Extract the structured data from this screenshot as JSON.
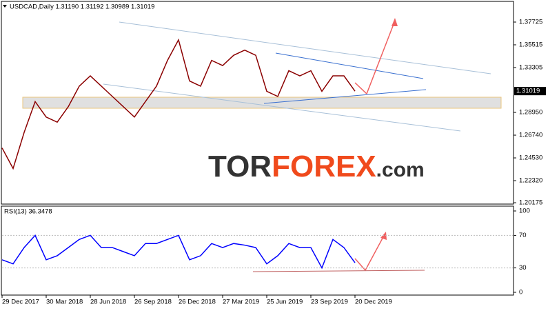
{
  "chart_data": [
    {
      "type": "line",
      "title": "USDCAD,Daily  1.31190 1.31192 1.30989 1.31019",
      "color": "#8b0000",
      "values": [
        1.255,
        1.235,
        1.27,
        1.3,
        1.285,
        1.28,
        1.295,
        1.315,
        1.325,
        1.315,
        1.305,
        1.295,
        1.285,
        1.3,
        1.315,
        1.34,
        1.36,
        1.32,
        1.315,
        1.34,
        1.335,
        1.345,
        1.35,
        1.345,
        1.31,
        1.305,
        1.33,
        1.325,
        1.33,
        1.31,
        1.325,
        1.325,
        1.31019
      ],
      "ylim": [
        1.20045,
        1.39734
      ],
      "yticks": [
        1.20175,
        {
          "value": 1.2232,
          "label": "1.22320"
        },
        {
          "value": 1.2453,
          "label": "1.24530"
        },
        {
          "value": 1.2674,
          "label": "1.26740"
        },
        {
          "value": 1.2895,
          "label": "1.28950"
        },
        1.33305,
        1.35515,
        1.37725
      ],
      "watermark": {
        "prefix": "TOR",
        "brand": "FOREX",
        "suffix": ".com"
      }
    },
    {
      "type": "line",
      "title": "RSI(13) 36.3478",
      "color": "#0000ff",
      "values": [
        40,
        35,
        55,
        70,
        40,
        45,
        55,
        65,
        70,
        55,
        55,
        50,
        45,
        60,
        60,
        65,
        70,
        40,
        45,
        60,
        55,
        60,
        58,
        55,
        35,
        45,
        60,
        55,
        55,
        30,
        65,
        55,
        36.3478
      ],
      "ylim": [
        0,
        100
      ],
      "yticks": [
        0,
        30,
        70,
        100
      ],
      "categories": [
        "29 Dec 2017",
        null,
        null,
        null,
        "30 Mar 2018",
        null,
        null,
        null,
        "28 Jun 2018",
        null,
        null,
        null,
        "26 Sep 2018",
        null,
        null,
        null,
        "26 Dec 2018",
        null,
        null,
        null,
        "27 Mar 2019",
        null,
        null,
        null,
        "25 Jun 2019",
        null,
        null,
        null,
        "23 Sep 2019",
        null,
        null,
        null,
        "20 Dec 2019"
      ]
    }
  ]
}
